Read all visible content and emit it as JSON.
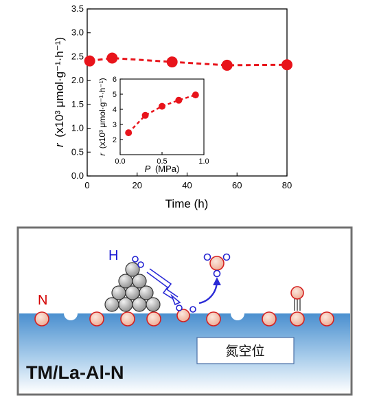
{
  "chart_data": [
    {
      "type": "scatter",
      "xlabel": "Time (h)",
      "ylabel_symbol": "r",
      "ylabel_unit": "(x10³ μmol·g⁻¹·h⁻¹)",
      "xlim": [
        0,
        80
      ],
      "ylim": [
        0,
        3.5
      ],
      "x_ticks": [
        "0",
        "20",
        "40",
        "60",
        "80"
      ],
      "y_ticks": [
        "0.0",
        "0.5",
        "1.0",
        "1.5",
        "2.0",
        "2.5",
        "3.0",
        "3.5"
      ],
      "x": [
        1,
        10,
        34,
        56,
        80
      ],
      "y": [
        2.41,
        2.47,
        2.39,
        2.32,
        2.33
      ],
      "color": "#e8141b",
      "line": "dashed"
    },
    {
      "type": "scatter",
      "inset": true,
      "xlabel_symbol": "P",
      "xlabel_unit": "(MPa)",
      "ylabel_symbol": "r",
      "ylabel_unit": "(x10³ μmol·g⁻¹·h⁻¹)",
      "xlim": [
        0,
        1.0
      ],
      "ylim": [
        1,
        6
      ],
      "x_ticks": [
        "0.0",
        "0.5",
        "1.0"
      ],
      "y_ticks": [
        "2",
        "3",
        "4",
        "5",
        "6"
      ],
      "x": [
        0.1,
        0.3,
        0.5,
        0.7,
        0.9
      ],
      "y": [
        2.45,
        3.6,
        4.2,
        4.6,
        4.95
      ],
      "color": "#e8141b",
      "line": "dashed"
    }
  ],
  "schematic": {
    "label_n": "N",
    "label_h": "H",
    "catalyst_label": "TM/La-Al-N",
    "vacancy_label": "氮空位",
    "colors": {
      "surface_top": "#4a8fcf",
      "surface_bottom": "#ffffff",
      "n_atom_fill": "#f5c2b0",
      "n_atom_edge": "#d42020",
      "h_atom_edge": "#2020d0",
      "metal_atom": "#b0b0b0",
      "frame": "#707070"
    }
  }
}
